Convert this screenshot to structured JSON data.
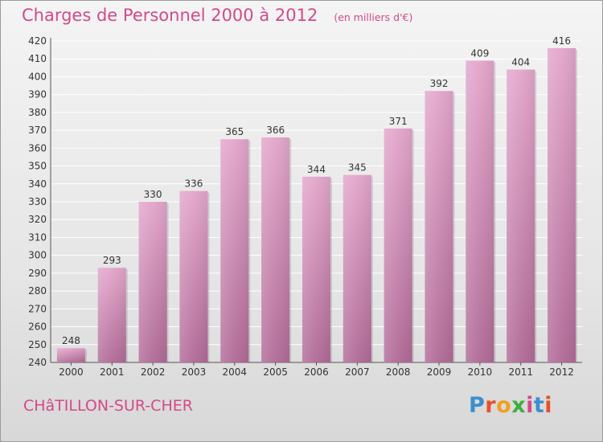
{
  "header": {
    "title": "Charges de Personnel 2000 à 2012",
    "subtitle": "(en milliers d'€)"
  },
  "footer": {
    "city": "CHâTILLON-SUR-CHER",
    "brand": [
      "P",
      "r",
      "o",
      "x",
      "i",
      "t",
      "i"
    ]
  },
  "colors": {
    "accent": "#d44a8a",
    "bar_top": "#e3a6cb",
    "bar_bottom": "#b06a96"
  },
  "chart_data": {
    "type": "bar",
    "title": "Charges de Personnel 2000 à 2012",
    "subtitle": "(en milliers d'€)",
    "xlabel": "",
    "ylabel": "",
    "categories": [
      "2000",
      "2001",
      "2002",
      "2003",
      "2004",
      "2005",
      "2006",
      "2007",
      "2008",
      "2009",
      "2010",
      "2011",
      "2012"
    ],
    "values": [
      248,
      293,
      330,
      336,
      365,
      366,
      344,
      345,
      371,
      392,
      409,
      404,
      416
    ],
    "ylim": [
      240,
      420
    ],
    "yticks": [
      240,
      250,
      260,
      270,
      280,
      290,
      300,
      310,
      320,
      330,
      340,
      350,
      360,
      370,
      380,
      390,
      400,
      410,
      420
    ],
    "grid": true
  }
}
